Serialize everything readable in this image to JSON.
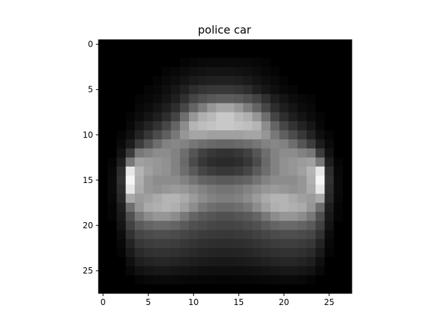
{
  "chart_data": {
    "type": "heatmap",
    "title": "police car",
    "xlabel": "",
    "ylabel": "",
    "colormap": "gray",
    "shape": [
      28,
      28
    ],
    "xlim": [
      -0.5,
      27.5
    ],
    "ylim": [
      27.5,
      -0.5
    ],
    "x_ticks": [
      0,
      5,
      10,
      15,
      20,
      25
    ],
    "y_ticks": [
      0,
      5,
      10,
      15,
      20,
      25
    ],
    "grid": false,
    "rows": [
      [
        0,
        0,
        0,
        0,
        0,
        0,
        0,
        0,
        0,
        0,
        0,
        0,
        0,
        0,
        0,
        0,
        0,
        0,
        0,
        0,
        0,
        0,
        0,
        0,
        0,
        0,
        0,
        0
      ],
      [
        0,
        0,
        0,
        0,
        0,
        0,
        0,
        0,
        0,
        0,
        0,
        0,
        0,
        0,
        0,
        0,
        0,
        0,
        0,
        0,
        0,
        0,
        0,
        0,
        0,
        0,
        0,
        0
      ],
      [
        0,
        0,
        0,
        0,
        0,
        0,
        0,
        0,
        0,
        5,
        7,
        9,
        10,
        10,
        10,
        10,
        9,
        7,
        5,
        0,
        0,
        0,
        0,
        0,
        0,
        0,
        0,
        0
      ],
      [
        0,
        0,
        0,
        0,
        0,
        0,
        0,
        5,
        8,
        12,
        16,
        18,
        20,
        20,
        20,
        18,
        16,
        12,
        8,
        5,
        0,
        0,
        0,
        0,
        0,
        0,
        0,
        0
      ],
      [
        0,
        0,
        0,
        0,
        0,
        0,
        5,
        9,
        14,
        20,
        26,
        30,
        32,
        33,
        33,
        30,
        26,
        20,
        14,
        9,
        5,
        0,
        0,
        0,
        0,
        0,
        0,
        0
      ],
      [
        0,
        0,
        0,
        0,
        0,
        5,
        8,
        14,
        22,
        32,
        45,
        52,
        55,
        56,
        56,
        52,
        45,
        32,
        22,
        14,
        8,
        5,
        0,
        0,
        0,
        0,
        0,
        0
      ],
      [
        0,
        0,
        0,
        0,
        5,
        8,
        12,
        20,
        30,
        48,
        68,
        80,
        88,
        92,
        92,
        88,
        80,
        68,
        48,
        30,
        20,
        12,
        8,
        5,
        0,
        0,
        0,
        0
      ],
      [
        0,
        0,
        0,
        0,
        8,
        12,
        20,
        30,
        45,
        70,
        100,
        125,
        150,
        165,
        165,
        150,
        125,
        100,
        70,
        45,
        30,
        20,
        12,
        8,
        0,
        0,
        0,
        0
      ],
      [
        0,
        0,
        0,
        5,
        12,
        20,
        30,
        45,
        68,
        110,
        150,
        175,
        185,
        200,
        200,
        185,
        175,
        150,
        110,
        68,
        45,
        30,
        20,
        12,
        5,
        0,
        0,
        0
      ],
      [
        0,
        0,
        0,
        8,
        22,
        35,
        50,
        70,
        100,
        140,
        180,
        190,
        195,
        200,
        200,
        195,
        190,
        180,
        140,
        100,
        70,
        50,
        35,
        22,
        8,
        0,
        0,
        0
      ],
      [
        0,
        0,
        5,
        15,
        35,
        55,
        75,
        95,
        120,
        150,
        165,
        165,
        160,
        160,
        160,
        160,
        165,
        165,
        150,
        120,
        95,
        75,
        55,
        35,
        15,
        5,
        0,
        0
      ],
      [
        0,
        0,
        10,
        28,
        60,
        85,
        110,
        130,
        135,
        130,
        118,
        110,
        105,
        102,
        102,
        105,
        110,
        118,
        130,
        135,
        130,
        110,
        85,
        60,
        28,
        10,
        0,
        0
      ],
      [
        0,
        0,
        18,
        60,
        120,
        130,
        140,
        140,
        130,
        110,
        85,
        65,
        55,
        50,
        50,
        55,
        65,
        85,
        110,
        130,
        140,
        140,
        130,
        120,
        60,
        18,
        0,
        0
      ],
      [
        0,
        5,
        30,
        120,
        160,
        155,
        150,
        145,
        130,
        105,
        75,
        55,
        45,
        42,
        42,
        45,
        55,
        75,
        105,
        130,
        145,
        150,
        155,
        160,
        120,
        30,
        5,
        0
      ],
      [
        0,
        8,
        45,
        230,
        180,
        160,
        150,
        145,
        130,
        110,
        90,
        70,
        60,
        55,
        55,
        60,
        70,
        90,
        110,
        130,
        145,
        150,
        160,
        180,
        230,
        45,
        8,
        0
      ],
      [
        0,
        10,
        50,
        245,
        175,
        150,
        140,
        140,
        140,
        130,
        115,
        100,
        95,
        90,
        90,
        95,
        100,
        115,
        130,
        140,
        140,
        140,
        150,
        175,
        245,
        50,
        10,
        0
      ],
      [
        0,
        10,
        45,
        230,
        170,
        150,
        145,
        150,
        155,
        150,
        140,
        130,
        120,
        115,
        115,
        120,
        130,
        140,
        150,
        155,
        150,
        145,
        150,
        170,
        230,
        45,
        10,
        0
      ],
      [
        0,
        8,
        40,
        170,
        155,
        160,
        170,
        180,
        180,
        170,
        155,
        140,
        130,
        125,
        125,
        130,
        140,
        155,
        170,
        180,
        180,
        170,
        160,
        155,
        170,
        40,
        8,
        0
      ],
      [
        0,
        5,
        30,
        110,
        150,
        170,
        175,
        180,
        175,
        160,
        140,
        120,
        110,
        105,
        105,
        110,
        120,
        140,
        160,
        175,
        180,
        175,
        170,
        150,
        110,
        30,
        5,
        0
      ],
      [
        0,
        5,
        25,
        80,
        120,
        140,
        150,
        150,
        140,
        120,
        100,
        90,
        85,
        80,
        80,
        85,
        90,
        100,
        120,
        140,
        150,
        150,
        140,
        120,
        80,
        25,
        5,
        0
      ],
      [
        0,
        0,
        20,
        65,
        90,
        100,
        105,
        105,
        100,
        90,
        80,
        75,
        70,
        68,
        68,
        70,
        75,
        80,
        90,
        100,
        105,
        105,
        100,
        90,
        65,
        20,
        0,
        0
      ],
      [
        0,
        0,
        12,
        50,
        70,
        75,
        78,
        78,
        75,
        70,
        65,
        60,
        58,
        56,
        56,
        58,
        60,
        65,
        70,
        75,
        78,
        78,
        75,
        70,
        50,
        12,
        0,
        0
      ],
      [
        0,
        0,
        8,
        35,
        55,
        60,
        62,
        62,
        60,
        56,
        52,
        48,
        46,
        45,
        45,
        46,
        48,
        52,
        56,
        60,
        62,
        62,
        60,
        55,
        35,
        8,
        0,
        0
      ],
      [
        0,
        0,
        5,
        25,
        42,
        48,
        50,
        50,
        48,
        45,
        42,
        38,
        36,
        35,
        35,
        36,
        38,
        42,
        45,
        48,
        50,
        50,
        48,
        42,
        25,
        5,
        0,
        0
      ],
      [
        0,
        0,
        0,
        15,
        30,
        35,
        38,
        38,
        36,
        33,
        30,
        28,
        26,
        25,
        25,
        26,
        28,
        30,
        33,
        36,
        38,
        38,
        35,
        30,
        15,
        0,
        0,
        0
      ],
      [
        0,
        0,
        0,
        8,
        18,
        22,
        24,
        24,
        22,
        20,
        18,
        16,
        15,
        15,
        15,
        15,
        16,
        18,
        20,
        22,
        24,
        24,
        22,
        18,
        8,
        0,
        0,
        0
      ],
      [
        0,
        0,
        0,
        0,
        5,
        8,
        10,
        10,
        9,
        8,
        7,
        6,
        6,
        5,
        5,
        6,
        6,
        7,
        8,
        9,
        10,
        10,
        8,
        5,
        0,
        0,
        0,
        0
      ],
      [
        0,
        0,
        0,
        0,
        0,
        0,
        0,
        0,
        0,
        0,
        0,
        0,
        0,
        0,
        0,
        0,
        0,
        0,
        0,
        0,
        0,
        0,
        0,
        0,
        0,
        0,
        0,
        0
      ]
    ]
  }
}
